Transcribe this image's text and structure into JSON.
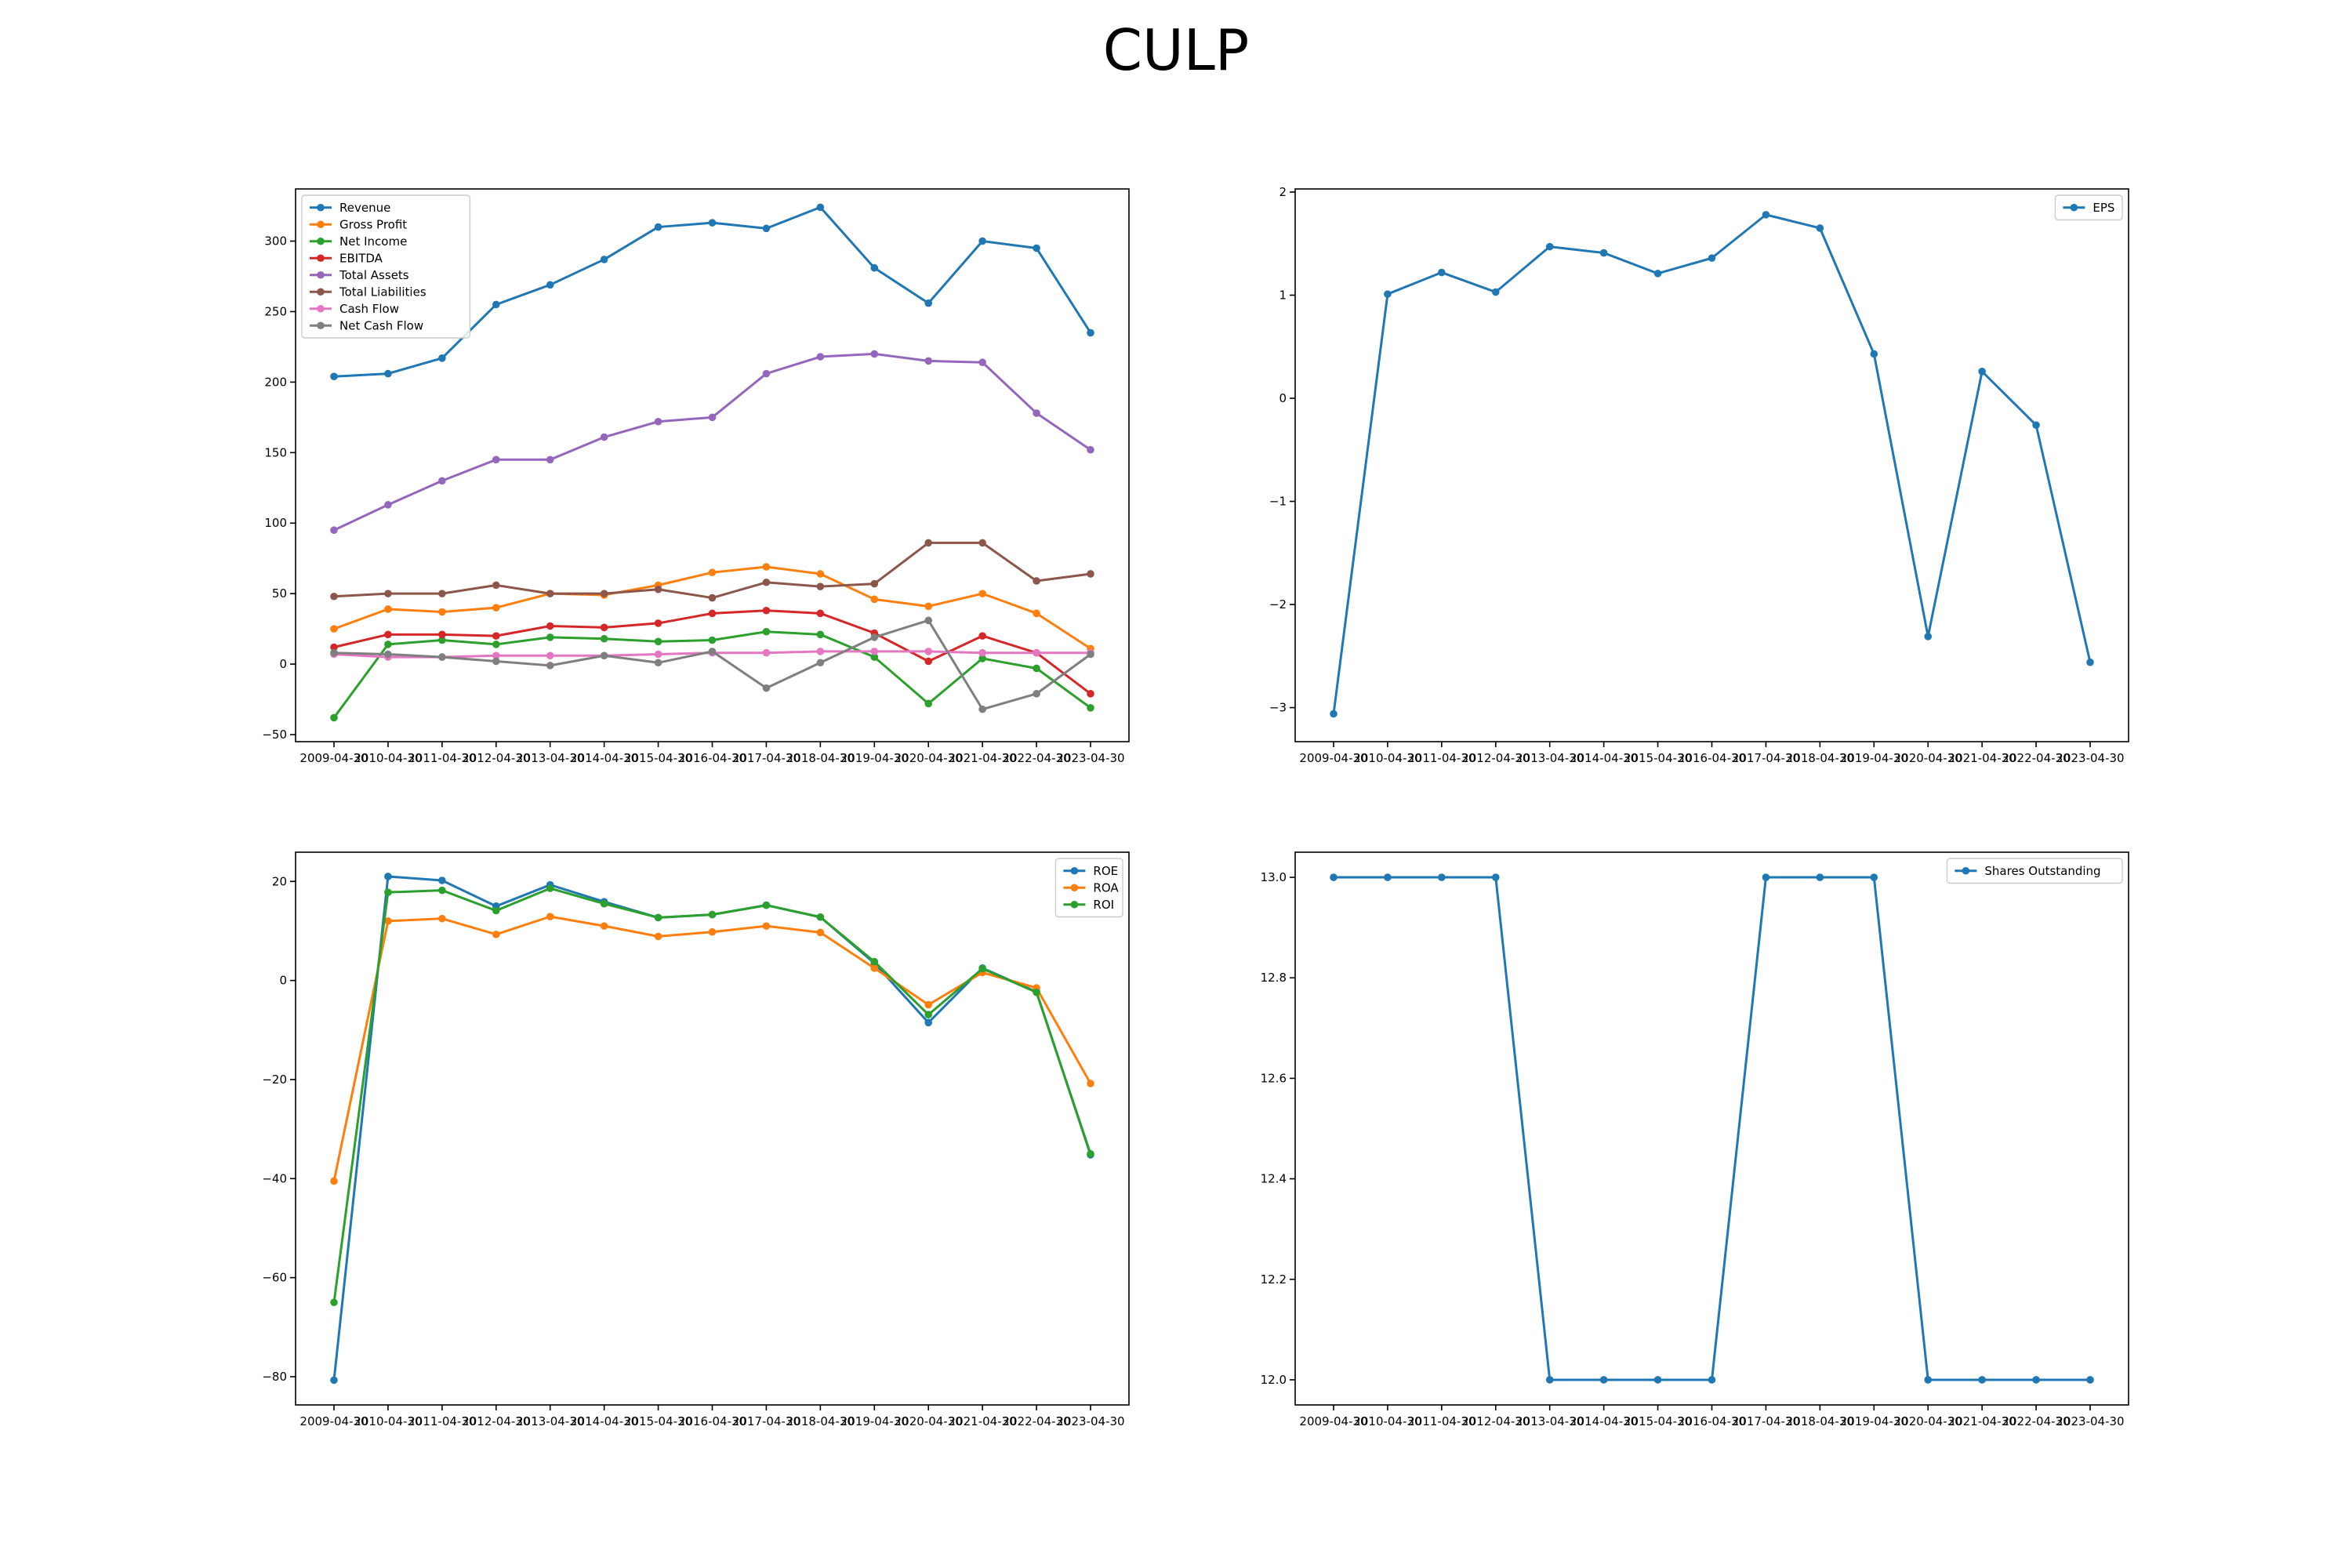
{
  "figure": {
    "title": "CULP"
  },
  "chart_data": [
    {
      "id": "financials",
      "type": "line",
      "categories": [
        "2009-04-30",
        "2010-04-30",
        "2011-04-30",
        "2012-04-30",
        "2013-04-30",
        "2014-04-30",
        "2015-04-30",
        "2016-04-30",
        "2017-04-30",
        "2018-04-30",
        "2019-04-30",
        "2020-04-30",
        "2021-04-30",
        "2022-04-30",
        "2023-04-30"
      ],
      "ylim": [
        -55,
        337
      ],
      "yticks": [
        -50,
        0,
        50,
        100,
        150,
        200,
        250,
        300
      ],
      "ytick_labels": [
        "−50",
        "0",
        "50",
        "100",
        "150",
        "200",
        "250",
        "300"
      ],
      "legend": "top-left",
      "series": [
        {
          "name": "Revenue",
          "color": "#1f77b4",
          "values": [
            204,
            206,
            217,
            255,
            269,
            287,
            310,
            313,
            309,
            324,
            281,
            256,
            300,
            295,
            235
          ]
        },
        {
          "name": "Gross Profit",
          "color": "#ff7f0e",
          "values": [
            25,
            39,
            37,
            40,
            50,
            49,
            56,
            65,
            69,
            64,
            46,
            41,
            50,
            36,
            11
          ]
        },
        {
          "name": "Net Income",
          "color": "#2ca02c",
          "values": [
            -38,
            14,
            17,
            14,
            19,
            18,
            16,
            17,
            23,
            21,
            5,
            -28,
            4,
            -3,
            -31
          ]
        },
        {
          "name": "EBITDA",
          "color": "#d62728",
          "values": [
            12,
            21,
            21,
            20,
            27,
            26,
            29,
            36,
            38,
            36,
            22,
            2,
            20,
            8,
            -21
          ]
        },
        {
          "name": "Total Assets",
          "color": "#9467bd",
          "values": [
            95,
            113,
            130,
            145,
            145,
            161,
            172,
            175,
            206,
            218,
            220,
            215,
            214,
            178,
            152
          ]
        },
        {
          "name": "Total Liabilities",
          "color": "#8c564b",
          "values": [
            48,
            50,
            50,
            56,
            50,
            50,
            53,
            47,
            58,
            55,
            57,
            86,
            86,
            59,
            64
          ]
        },
        {
          "name": "Cash Flow",
          "color": "#e377c2",
          "values": [
            7,
            5,
            5,
            6,
            6,
            6,
            7,
            8,
            8,
            9,
            9,
            9,
            8,
            8,
            8
          ]
        },
        {
          "name": "Net Cash Flow",
          "color": "#7f7f7f",
          "values": [
            8,
            7,
            5,
            2,
            -1,
            6,
            1,
            9,
            -17,
            1,
            19,
            31,
            -32,
            -21,
            7
          ]
        }
      ]
    },
    {
      "id": "eps",
      "type": "line",
      "categories": [
        "2009-04-30",
        "2010-04-30",
        "2011-04-30",
        "2012-04-30",
        "2013-04-30",
        "2014-04-30",
        "2015-04-30",
        "2016-04-30",
        "2017-04-30",
        "2018-04-30",
        "2019-04-30",
        "2020-04-30",
        "2021-04-30",
        "2022-04-30",
        "2023-04-30"
      ],
      "ylim": [
        -3.33,
        2.03
      ],
      "yticks": [
        -3,
        -2,
        -1,
        0,
        1,
        2
      ],
      "ytick_labels": [
        "−3",
        "−2",
        "−1",
        "0",
        "1",
        "2"
      ],
      "legend": "top-right",
      "series": [
        {
          "name": "EPS",
          "color": "#1f77b4",
          "values": [
            -3.06,
            1.01,
            1.22,
            1.03,
            1.47,
            1.41,
            1.21,
            1.36,
            1.78,
            1.65,
            0.43,
            -2.31,
            0.26,
            -0.26,
            -2.56
          ]
        }
      ]
    },
    {
      "id": "ratios",
      "type": "line",
      "categories": [
        "2009-04-30",
        "2010-04-30",
        "2011-04-30",
        "2012-04-30",
        "2013-04-30",
        "2014-04-30",
        "2015-04-30",
        "2016-04-30",
        "2017-04-30",
        "2018-04-30",
        "2019-04-30",
        "2020-04-30",
        "2021-04-30",
        "2022-04-30",
        "2023-04-30"
      ],
      "ylim": [
        -85.7,
        25.9
      ],
      "yticks": [
        -80,
        -60,
        -40,
        -20,
        0,
        20
      ],
      "ytick_labels": [
        "−80",
        "−60",
        "−40",
        "−20",
        "0",
        "20"
      ],
      "legend": "top-right",
      "series": [
        {
          "name": "ROE",
          "color": "#1f77b4",
          "values": [
            -80.7,
            21.0,
            20.2,
            15.0,
            19.3,
            15.9,
            12.7,
            13.3,
            15.2,
            12.8,
            3.5,
            -8.5,
            2.5,
            -2.3,
            -35.2
          ]
        },
        {
          "name": "ROA",
          "color": "#ff7f0e",
          "values": [
            -40.5,
            12.0,
            12.5,
            9.3,
            12.9,
            11.0,
            8.9,
            9.8,
            11.0,
            9.7,
            2.5,
            -4.9,
            1.6,
            -1.5,
            -20.8
          ]
        },
        {
          "name": "ROI",
          "color": "#2ca02c",
          "values": [
            -65.0,
            17.8,
            18.2,
            14.1,
            18.6,
            15.5,
            12.7,
            13.3,
            15.2,
            12.8,
            3.8,
            -6.9,
            2.4,
            -2.4,
            -35.0
          ]
        }
      ]
    },
    {
      "id": "shares",
      "type": "line",
      "categories": [
        "2009-04-30",
        "2010-04-30",
        "2011-04-30",
        "2012-04-30",
        "2013-04-30",
        "2014-04-30",
        "2015-04-30",
        "2016-04-30",
        "2017-04-30",
        "2018-04-30",
        "2019-04-30",
        "2020-04-30",
        "2021-04-30",
        "2022-04-30",
        "2023-04-30"
      ],
      "ylim": [
        11.95,
        13.05
      ],
      "yticks": [
        12.0,
        12.2,
        12.4,
        12.6,
        12.8,
        13.0
      ],
      "ytick_labels": [
        "12.0",
        "12.2",
        "12.4",
        "12.6",
        "12.8",
        "13.0"
      ],
      "legend": "top-right",
      "series": [
        {
          "name": "Shares Outstanding",
          "color": "#1f77b4",
          "values": [
            13,
            13,
            13,
            13,
            12,
            12,
            12,
            12,
            13,
            13,
            13,
            12,
            12,
            12,
            12
          ]
        }
      ]
    }
  ]
}
